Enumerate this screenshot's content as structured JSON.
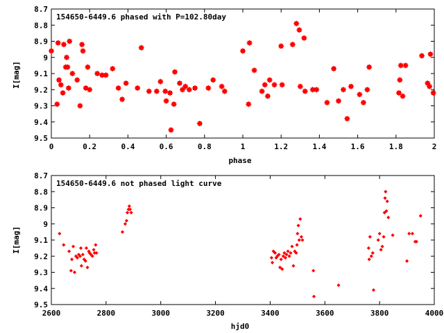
{
  "chart_data": [
    {
      "type": "scatter",
      "title": "154650-6449.6 phased with P=102.80day",
      "xlabel": "phase",
      "ylabel": "I[mag]",
      "xlim": [
        0,
        2
      ],
      "ylim": [
        8.7,
        9.5
      ],
      "y_inverted": true,
      "x_ticks": [
        "0",
        "0.2",
        "0.4",
        "0.6",
        "0.8",
        "1",
        "1.2",
        "1.4",
        "1.6",
        "1.8",
        "2"
      ],
      "y_ticks": [
        "8.7",
        "8.8",
        "8.9",
        "9",
        "9.1",
        "9.2",
        "9.3",
        "9.4",
        "9.5"
      ],
      "grid": false,
      "marker_color": "#ff0000",
      "series": [
        {
          "points": [
            [
              0.0,
              8.96
            ],
            [
              0.03,
              9.29
            ],
            [
              0.035,
              8.91
            ],
            [
              0.04,
              9.14
            ],
            [
              0.05,
              9.17
            ],
            [
              0.06,
              9.22
            ],
            [
              0.065,
              8.92
            ],
            [
              0.075,
              9.06
            ],
            [
              0.08,
              9.0
            ],
            [
              0.085,
              9.06
            ],
            [
              0.09,
              9.19
            ],
            [
              0.095,
              8.9
            ],
            [
              0.11,
              9.1
            ],
            [
              0.135,
              9.14
            ],
            [
              0.15,
              9.3
            ],
            [
              0.16,
              8.92
            ],
            [
              0.165,
              8.96
            ],
            [
              0.18,
              9.19
            ],
            [
              0.19,
              9.06
            ],
            [
              0.2,
              9.2
            ],
            [
              0.24,
              9.1
            ],
            [
              0.265,
              9.11
            ],
            [
              0.285,
              9.11
            ],
            [
              0.32,
              9.07
            ],
            [
              0.35,
              9.19
            ],
            [
              0.37,
              9.26
            ],
            [
              0.39,
              9.16
            ],
            [
              0.45,
              9.19
            ],
            [
              0.47,
              8.94
            ],
            [
              0.51,
              9.21
            ],
            [
              0.55,
              9.21
            ],
            [
              0.57,
              9.15
            ],
            [
              0.595,
              9.21
            ],
            [
              0.6,
              9.27
            ],
            [
              0.62,
              9.22
            ],
            [
              0.625,
              9.45
            ],
            [
              0.64,
              9.29
            ],
            [
              0.645,
              9.09
            ],
            [
              0.67,
              9.16
            ],
            [
              0.685,
              9.2
            ],
            [
              0.7,
              9.18
            ],
            [
              0.72,
              9.2
            ],
            [
              0.75,
              9.19
            ],
            [
              0.775,
              9.41
            ],
            [
              0.82,
              9.19
            ],
            [
              0.845,
              9.14
            ],
            [
              0.89,
              9.18
            ],
            [
              0.905,
              9.21
            ],
            [
              1.0,
              8.96
            ],
            [
              1.03,
              9.29
            ],
            [
              1.035,
              8.91
            ],
            [
              1.06,
              9.08
            ],
            [
              1.1,
              9.21
            ],
            [
              1.115,
              9.17
            ],
            [
              1.13,
              9.24
            ],
            [
              1.14,
              9.14
            ],
            [
              1.165,
              9.17
            ],
            [
              1.2,
              8.93
            ],
            [
              1.205,
              9.17
            ],
            [
              1.26,
              8.92
            ],
            [
              1.28,
              8.79
            ],
            [
              1.295,
              8.83
            ],
            [
              1.3,
              9.18
            ],
            [
              1.32,
              8.88
            ],
            [
              1.325,
              9.21
            ],
            [
              1.365,
              9.2
            ],
            [
              1.385,
              9.2
            ],
            [
              1.44,
              9.28
            ],
            [
              1.475,
              9.07
            ],
            [
              1.5,
              9.27
            ],
            [
              1.525,
              9.2
            ],
            [
              1.545,
              9.38
            ],
            [
              1.565,
              9.18
            ],
            [
              1.61,
              9.23
            ],
            [
              1.63,
              9.28
            ],
            [
              1.65,
              9.2
            ],
            [
              1.66,
              9.06
            ],
            [
              1.815,
              9.22
            ],
            [
              1.82,
              9.14
            ],
            [
              1.825,
              9.05
            ],
            [
              1.835,
              9.24
            ],
            [
              1.85,
              9.05
            ],
            [
              1.935,
              8.99
            ],
            [
              1.965,
              9.16
            ],
            [
              1.975,
              9.18
            ],
            [
              1.98,
              8.98
            ],
            [
              1.995,
              9.22
            ]
          ]
        }
      ]
    },
    {
      "type": "scatter",
      "title": "154650-6449.6 not phased light curve",
      "xlabel": "hjd0",
      "ylabel": "I[mag]",
      "xlim": [
        2600,
        4000
      ],
      "ylim": [
        8.7,
        9.5
      ],
      "y_inverted": true,
      "x_ticks": [
        "2600",
        "2800",
        "3000",
        "3200",
        "3400",
        "3600",
        "3800",
        "4000"
      ],
      "y_ticks": [
        "8.7",
        "8.8",
        "8.9",
        "9",
        "9.1",
        "9.2",
        "9.3",
        "9.4",
        "9.5"
      ],
      "grid": false,
      "marker_color": "#ff0000",
      "series": [
        {
          "points": [
            [
              2630,
              9.06
            ],
            [
              2645,
              9.13
            ],
            [
              2665,
              9.17
            ],
            [
              2672,
              9.29
            ],
            [
              2675,
              9.22
            ],
            [
              2680,
              9.14
            ],
            [
              2685,
              9.3
            ],
            [
              2690,
              9.2
            ],
            [
              2695,
              9.21
            ],
            [
              2700,
              9.19
            ],
            [
              2705,
              9.2
            ],
            [
              2708,
              9.15
            ],
            [
              2710,
              9.26
            ],
            [
              2715,
              9.19
            ],
            [
              2720,
              9.22
            ],
            [
              2725,
              9.23
            ],
            [
              2728,
              9.15
            ],
            [
              2732,
              9.27
            ],
            [
              2737,
              9.17
            ],
            [
              2740,
              9.18
            ],
            [
              2745,
              9.19
            ],
            [
              2750,
              9.2
            ],
            [
              2755,
              9.16
            ],
            [
              2758,
              9.18
            ],
            [
              2762,
              9.13
            ],
            [
              2765,
              9.18
            ],
            [
              2860,
              9.05
            ],
            [
              2870,
              9.0
            ],
            [
              2875,
              8.98
            ],
            [
              2878,
              8.93
            ],
            [
              2882,
              8.91
            ],
            [
              2885,
              8.89
            ],
            [
              2888,
              8.91
            ],
            [
              2892,
              8.93
            ],
            [
              3405,
              9.21
            ],
            [
              3408,
              9.24
            ],
            [
              3412,
              9.17
            ],
            [
              3418,
              9.18
            ],
            [
              3422,
              9.21
            ],
            [
              3426,
              9.2
            ],
            [
              3432,
              9.19
            ],
            [
              3436,
              9.27
            ],
            [
              3440,
              9.22
            ],
            [
              3444,
              9.28
            ],
            [
              3448,
              9.2
            ],
            [
              3452,
              9.18
            ],
            [
              3456,
              9.21
            ],
            [
              3460,
              9.19
            ],
            [
              3465,
              9.17
            ],
            [
              3470,
              9.2
            ],
            [
              3475,
              9.18
            ],
            [
              3480,
              9.14
            ],
            [
              3485,
              9.26
            ],
            [
              3490,
              9.17
            ],
            [
              3495,
              9.18
            ],
            [
              3498,
              9.13
            ],
            [
              3500,
              9.06
            ],
            [
              3503,
              9.01
            ],
            [
              3506,
              9.1
            ],
            [
              3510,
              8.97
            ],
            [
              3514,
              9.08
            ],
            [
              3518,
              9.1
            ],
            [
              3558,
              9.29
            ],
            [
              3560,
              9.45
            ],
            [
              3650,
              9.38
            ],
            [
              3760,
              9.15
            ],
            [
              3762,
              9.22
            ],
            [
              3765,
              9.08
            ],
            [
              3770,
              9.2
            ],
            [
              3775,
              9.18
            ],
            [
              3778,
              9.41
            ],
            [
              3795,
              9.1
            ],
            [
              3800,
              9.06
            ],
            [
              3805,
              9.16
            ],
            [
              3810,
              9.14
            ],
            [
              3815,
              9.08
            ],
            [
              3818,
              8.93
            ],
            [
              3820,
              8.84
            ],
            [
              3822,
              8.8
            ],
            [
              3825,
              8.92
            ],
            [
              3828,
              8.86
            ],
            [
              3832,
              8.96
            ],
            [
              3848,
              9.07
            ],
            [
              3900,
              9.23
            ],
            [
              3908,
              9.06
            ],
            [
              3920,
              9.06
            ],
            [
              3930,
              9.11
            ],
            [
              3935,
              9.11
            ],
            [
              3950,
              8.95
            ]
          ]
        }
      ]
    }
  ]
}
